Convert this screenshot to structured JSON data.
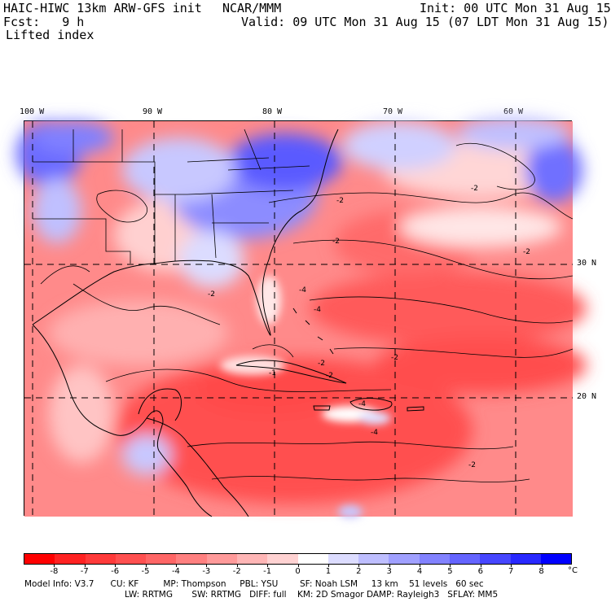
{
  "header": {
    "model": "HAIC-HIWC 13km ARW-GFS init",
    "org": "NCAR/MMM",
    "init": "Init: 00 UTC Mon 31 Aug 15",
    "fcst": "Fcst:   9 h",
    "valid": "Valid: 09 UTC Mon 31 Aug 15 (07 LDT Mon 31 Aug 15)",
    "field": "Lifted index"
  },
  "map": {
    "lon_labels": [
      "100 W",
      "90 W",
      "80 W",
      "70 W",
      "60 W"
    ],
    "lat_labels": [
      "30 N",
      "20 N"
    ],
    "contour_labels": [
      "-2",
      "-2",
      "-2",
      "-2",
      "-2",
      "-2",
      "-4",
      "-4",
      "-4",
      "-4",
      "-2",
      "-2",
      "-1",
      "-2"
    ]
  },
  "colorbar": {
    "labels": [
      "-8",
      "-7",
      "-6",
      "-5",
      "-4",
      "-3",
      "-2",
      "-1",
      "0",
      "1",
      "2",
      "3",
      "4",
      "5",
      "6",
      "7",
      "8"
    ],
    "unit": "°C",
    "colors": [
      "#ff0000",
      "#ff2222",
      "#ff3a3a",
      "#ff5050",
      "#ff6666",
      "#ff8080",
      "#ff9a9a",
      "#ffb6b6",
      "#ffd2d2",
      "#ffffff",
      "#dcdcff",
      "#bebeff",
      "#a0a0ff",
      "#8282ff",
      "#6464ff",
      "#4646ff",
      "#2828ff",
      "#0000ff"
    ]
  },
  "footer": {
    "line1": "Model Info: V3.7      CU: KF         MP: Thompson     PBL: YSU        SF: Noah LSM     13 km    51 levels   60 sec",
    "line2": "LW: RRTMG       SW: RRTMG   DIFF: full    KM: 2D Smagor DAMP: Rayleigh3   SFLAY: MM5"
  }
}
